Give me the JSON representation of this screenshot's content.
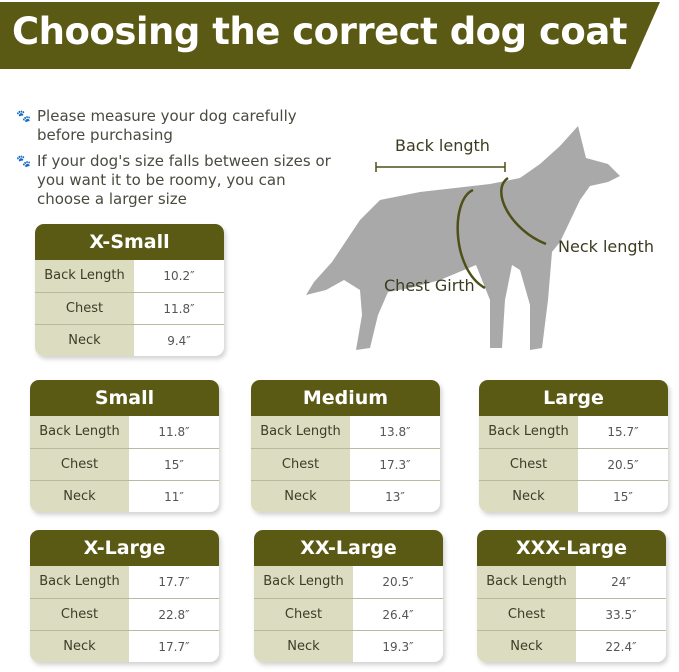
{
  "title": "Choosing the correct dog coat",
  "tips": [
    "Please measure your dog carefully before purchasing",
    "If your dog's size falls between sizes or you want it to be roomy, you can choose a larger size"
  ],
  "tip_icon": "paw-print-icon",
  "diagram": {
    "back_length": "Back length",
    "neck_length": "Neck length",
    "chest_girth": "Chest Girth"
  },
  "colors": {
    "header": "#5b5a14",
    "label_bg": "#dcdcc0"
  },
  "sizes": [
    {
      "name": "X-Small",
      "rows": [
        {
          "label": "Back Length",
          "value": "10.2″"
        },
        {
          "label": "Chest",
          "value": "11.8″"
        },
        {
          "label": "Neck",
          "value": "9.4″"
        }
      ]
    },
    {
      "name": "Small",
      "rows": [
        {
          "label": "Back Length",
          "value": "11.8″"
        },
        {
          "label": "Chest",
          "value": "15″"
        },
        {
          "label": "Neck",
          "value": "11″"
        }
      ]
    },
    {
      "name": "Medium",
      "rows": [
        {
          "label": "Back Length",
          "value": "13.8″"
        },
        {
          "label": "Chest",
          "value": "17.3″"
        },
        {
          "label": "Neck",
          "value": "13″"
        }
      ]
    },
    {
      "name": "Large",
      "rows": [
        {
          "label": "Back Length",
          "value": "15.7″"
        },
        {
          "label": "Chest",
          "value": "20.5″"
        },
        {
          "label": "Neck",
          "value": "15″"
        }
      ]
    },
    {
      "name": "X-Large",
      "rows": [
        {
          "label": "Back Length",
          "value": "17.7″"
        },
        {
          "label": "Chest",
          "value": "22.8″"
        },
        {
          "label": "Neck",
          "value": "17.7″"
        }
      ]
    },
    {
      "name": "XX-Large",
      "rows": [
        {
          "label": "Back Length",
          "value": "20.5″"
        },
        {
          "label": "Chest",
          "value": "26.4″"
        },
        {
          "label": "Neck",
          "value": "19.3″"
        }
      ]
    },
    {
      "name": "XXX-Large",
      "rows": [
        {
          "label": "Back Length",
          "value": "24″"
        },
        {
          "label": "Chest",
          "value": "33.5″"
        },
        {
          "label": "Neck",
          "value": "22.4″"
        }
      ]
    }
  ]
}
